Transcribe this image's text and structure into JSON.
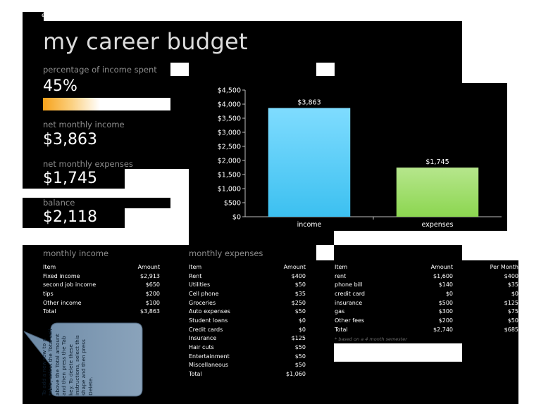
{
  "tab_label": "e",
  "title": "my career budget",
  "summary": {
    "pct_label": "percentage of income spent",
    "pct_value": "45%",
    "pct_fraction": 0.45,
    "income_label": "net monthly income",
    "income_value": "$3,863",
    "expenses_label": "net monthly expenses",
    "expenses_value": "$1,745",
    "balance_label": "balance",
    "balance_value": "$2,118"
  },
  "chart_data": {
    "type": "bar",
    "categories": [
      "income",
      "expenses"
    ],
    "values": [
      3863,
      1745
    ],
    "data_labels": [
      "$3,863",
      "$1,745"
    ],
    "y_ticks": [
      "$0",
      "$500",
      "$1,000",
      "$1,500",
      "$2,000",
      "$2,500",
      "$3,000",
      "$3,500",
      "$4,000",
      "$4,500"
    ],
    "ylim": [
      0,
      4500
    ],
    "colors": [
      "#3cc0f0",
      "#8cd650"
    ],
    "grid": false,
    "legend": "none"
  },
  "income": {
    "heading": "monthly income",
    "col_item": "Item",
    "col_amount": "Amount",
    "rows": [
      {
        "item": "Fixed income",
        "amount": "$2,913"
      },
      {
        "item": "second job income",
        "amount": "$650"
      },
      {
        "item": "tips",
        "amount": "$200"
      },
      {
        "item": "Other income",
        "amount": "$100"
      },
      {
        "item": "Total",
        "amount": "$3,863"
      }
    ]
  },
  "expenses": {
    "heading": "monthly expenses",
    "col_item": "Item",
    "col_amount": "Amount",
    "rows": [
      {
        "item": "Rent",
        "amount": "$400"
      },
      {
        "item": "Utilities",
        "amount": "$50"
      },
      {
        "item": "Cell phone",
        "amount": "$35"
      },
      {
        "item": "Groceries",
        "amount": "$250"
      },
      {
        "item": "Auto expenses",
        "amount": "$50"
      },
      {
        "item": "Student loans",
        "amount": "$0"
      },
      {
        "item": "Credit cards",
        "amount": "$0"
      },
      {
        "item": "Insurance",
        "amount": "$125"
      },
      {
        "item": "Hair cuts",
        "amount": "$50"
      },
      {
        "item": "Entertainment",
        "amount": "$50"
      },
      {
        "item": "Miscellaneous",
        "amount": "$50"
      },
      {
        "item": "Total",
        "amount": "$1,060"
      }
    ]
  },
  "semester": {
    "col_item": "Item",
    "col_amount": "Amount",
    "col_per_month": "Per Month",
    "rows": [
      {
        "item": "rent",
        "amount": "$1,600",
        "per_month": "$400"
      },
      {
        "item": "phone bill",
        "amount": "$140",
        "per_month": "$35"
      },
      {
        "item": "credit card",
        "amount": "$0",
        "per_month": "$0"
      },
      {
        "item": "insurance",
        "amount": "$500",
        "per_month": "$125"
      },
      {
        "item": "gas",
        "amount": "$300",
        "per_month": "$75"
      },
      {
        "item": "Other fees",
        "amount": "$200",
        "per_month": "$50"
      },
      {
        "item": "Total",
        "amount": "$2,740",
        "per_month": "$685"
      }
    ],
    "note": "* based on a 4 month semester"
  },
  "callout_text": "To add a new row to a table, select the Total cell above the Total amount and then press the Tab key. To delete these instructions, select this shape and then press Delete."
}
